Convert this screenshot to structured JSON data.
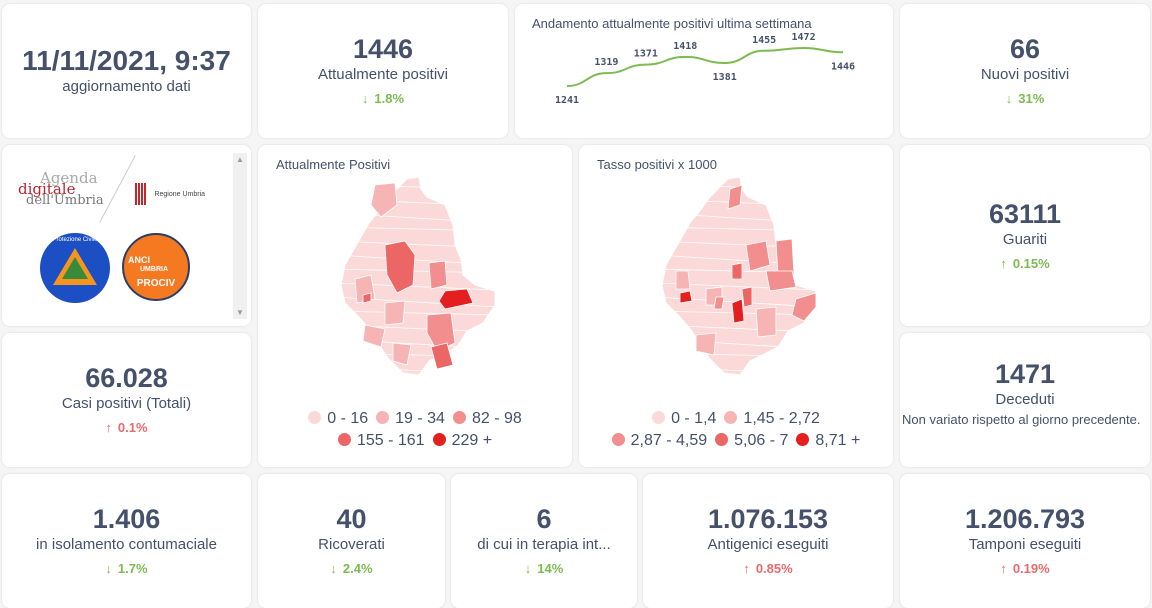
{
  "colors": {
    "text": "#45506b",
    "green": "#7cbb52",
    "red": "#e86a6c",
    "line": "#7cbb52"
  },
  "update": {
    "value": "11/11/2021, 9:37",
    "label": "aggiornamento dati"
  },
  "attualmente": {
    "value": "1446",
    "label": "Attualmente positivi",
    "arrow": "↓",
    "delta": "1.8%"
  },
  "nuovi": {
    "value": "66",
    "label": "Nuovi positivi",
    "arrow": "↓",
    "delta": "31%"
  },
  "casi": {
    "value": "66.028",
    "label": "Casi positivi (Totali)",
    "arrow": "↑",
    "delta": "0.1%"
  },
  "guariti": {
    "value": "63111",
    "label": "Guariti",
    "arrow": "↑",
    "delta": "0.15%"
  },
  "deceduti": {
    "value": "1471",
    "label": "Deceduti",
    "note": "Non variato rispetto al giorno precedente."
  },
  "isolamento": {
    "value": "1.406",
    "label": "in isolamento contumaciale",
    "arrow": "↓",
    "delta": "1.7%"
  },
  "ricoverati": {
    "value": "40",
    "label": "Ricoverati",
    "arrow": "↓",
    "delta": "2.4%"
  },
  "terapia": {
    "value": "6",
    "label": "di cui in terapia int...",
    "arrow": "↓",
    "delta": "14%"
  },
  "antigenici": {
    "value": "1.076.153",
    "label": "Antigenici eseguiti",
    "arrow": "↑",
    "delta": "0.85%"
  },
  "tamponi": {
    "value": "1.206.793",
    "label": "Tamponi eseguiti",
    "arrow": "↑",
    "delta": "0.19%"
  },
  "logos": {
    "agenda_1": "Agenda",
    "agenda_2": "digitale",
    "agenda_3": "dell'Umbria",
    "regione": "Regione Umbria",
    "protezione": "Protezione Civile",
    "anci_1": "ANCI",
    "anci_2": "UMBRIA",
    "anci_3": "PROCIV"
  },
  "map1": {
    "title": "Attualmente Positivi",
    "legend": [
      {
        "label": "0 - 16",
        "color": "#fbd9d9"
      },
      {
        "label": "19 - 34",
        "color": "#f7b4b4"
      },
      {
        "label": "82 - 98",
        "color": "#f28e8e"
      },
      {
        "label": "155 - 161",
        "color": "#ec6666"
      },
      {
        "label": "229 +",
        "color": "#e3201f"
      }
    ]
  },
  "map2": {
    "title": "Tasso positivi x 1000",
    "legend": [
      {
        "label": "0 - 1,4",
        "color": "#fbd9d9"
      },
      {
        "label": "1,45 - 2,72",
        "color": "#f7b4b4"
      },
      {
        "label": "2,87 - 4,59",
        "color": "#f28e8e"
      },
      {
        "label": "5,06 - 7",
        "color": "#ec6666"
      },
      {
        "label": "8,71 +",
        "color": "#e3201f"
      }
    ]
  },
  "chart_data": {
    "type": "line",
    "title": "Andamento attualmente positivi ultima settimana",
    "x": [
      1,
      2,
      3,
      4,
      5,
      6,
      7,
      8
    ],
    "values": [
      1241,
      1319,
      1371,
      1418,
      1381,
      1455,
      1472,
      1446
    ],
    "labels": [
      "1241",
      "1319",
      "1371",
      "1418",
      "1381",
      "1455",
      "1472",
      "1446"
    ],
    "ylim": [
      1200,
      1500
    ],
    "grid": false
  }
}
